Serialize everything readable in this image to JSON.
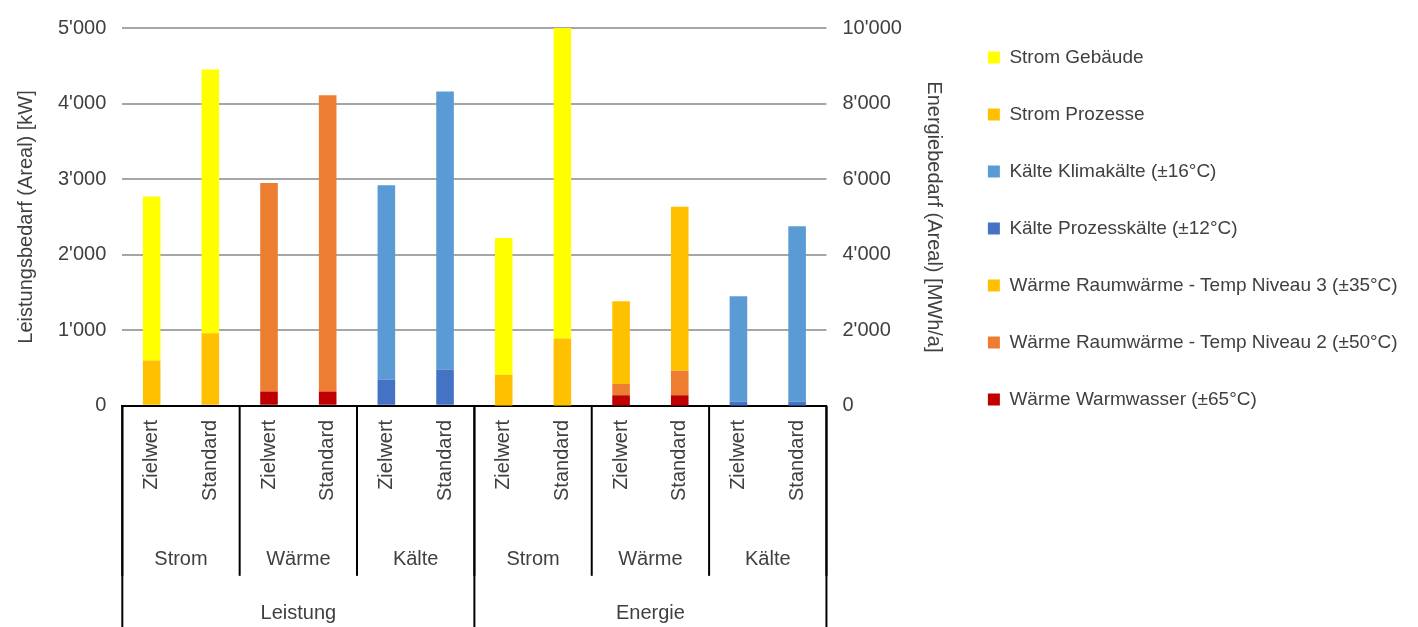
{
  "chart_data": {
    "type": "bar",
    "stacked": true,
    "ylabel": "Leistungsbedarf (Areal) [kW]",
    "y2label": "Energiebedarf (Areal) [MWh/a]",
    "categories": [
      "Zielwert",
      "Standard",
      "Zielwert",
      "Standard",
      "Zielwert",
      "Standard",
      "Zielwert",
      "Standard",
      "Zielwert",
      "Standard",
      "Zielwert",
      "Standard"
    ],
    "series": [
      {
        "name": "Wärme Warmwasser (±65°C)",
        "color": "#c00000",
        "values": [
          null,
          null,
          190,
          190,
          null,
          null,
          null,
          null,
          null,
          null,
          null,
          null
        ]
      },
      {
        "name": "Wärme Raumwärme - Temp Niveau 2 (±50°C)",
        "color": "#ed7d31",
        "values": [
          null,
          null,
          2760,
          3920,
          null,
          null,
          null,
          null,
          null,
          null,
          null,
          null
        ]
      },
      {
        "name": "Wärme Raumwärme - Temp Niveau 3 (±35°C)",
        "color": "#ffc000",
        "values": [
          null,
          null,
          null,
          null,
          null,
          null,
          null,
          null,
          null,
          null,
          null,
          null
        ]
      },
      {
        "name": "Kälte Prozesskälte (±12°C)",
        "color": "#4472c4",
        "values": [
          null,
          null,
          null,
          null,
          350,
          480,
          null,
          null,
          null,
          null,
          null,
          null
        ]
      },
      {
        "name": "Kälte Klimakälte (±16°C)",
        "color": "#5b9bd5",
        "values": [
          null,
          null,
          null,
          null,
          2570,
          3680,
          null,
          null,
          null,
          null,
          null,
          null
        ]
      },
      {
        "name": "Strom Prozesse",
        "color": "#ffc000",
        "values": [
          600,
          960,
          null,
          null,
          null,
          null,
          null,
          null,
          null,
          null,
          null,
          null
        ]
      },
      {
        "name": "Strom Gebäude",
        "color": "#ffff00",
        "values": [
          2170,
          3490,
          null,
          null,
          null,
          null,
          null,
          null,
          null,
          null,
          null,
          null
        ]
      },
      {
        "color": "#c00000",
        "axis": "y2",
        "values": [
          null,
          null,
          null,
          null,
          null,
          null,
          null,
          null,
          280,
          280,
          null,
          null
        ]
      },
      {
        "color": "#ed7d31",
        "axis": "y2",
        "values": [
          null,
          null,
          null,
          null,
          null,
          null,
          null,
          null,
          300,
          650,
          null,
          null
        ]
      },
      {
        "color": "#ffc000",
        "axis": "y2",
        "values": [
          null,
          null,
          null,
          null,
          null,
          null,
          null,
          null,
          2190,
          4340,
          null,
          null
        ]
      },
      {
        "color": "#4472c4",
        "axis": "y2",
        "values": [
          null,
          null,
          null,
          null,
          null,
          null,
          null,
          null,
          null,
          null,
          110,
          110
        ]
      },
      {
        "color": "#5b9bd5",
        "axis": "y2",
        "values": [
          null,
          null,
          null,
          null,
          null,
          null,
          null,
          null,
          null,
          null,
          2790,
          4640
        ]
      },
      {
        "color": "#ffc000",
        "axis": "y2",
        "values": [
          null,
          null,
          null,
          null,
          null,
          null,
          820,
          1780,
          null,
          null,
          null,
          null
        ]
      },
      {
        "color": "#ffff00",
        "axis": "y2",
        "values": [
          null,
          null,
          null,
          null,
          null,
          null,
          3620,
          8220,
          null,
          null,
          null,
          null
        ]
      }
    ],
    "ylim": [
      0,
      5000
    ],
    "yticks": [
      {
        "value": 0,
        "label": "0"
      },
      {
        "value": 1000,
        "label": "1'000"
      },
      {
        "value": 2000,
        "label": "2'000"
      },
      {
        "value": 3000,
        "label": "3'000"
      },
      {
        "value": 4000,
        "label": "4'000"
      },
      {
        "value": 5000,
        "label": "5'000"
      }
    ],
    "y2lim": [
      0,
      10000
    ],
    "y2ticks": [
      {
        "value": 0,
        "label": "0"
      },
      {
        "value": 2000,
        "label": "2'000"
      },
      {
        "value": 4000,
        "label": "4'000"
      },
      {
        "value": 6000,
        "label": "6'000"
      },
      {
        "value": 8000,
        "label": "8'000"
      },
      {
        "value": 10000,
        "label": "10'000"
      }
    ],
    "annotations": [
      "Strom",
      "Wärme",
      "Kälte",
      "Strom",
      "Wärme",
      "Kälte",
      "Leistung",
      "Energie"
    ],
    "grid": "y",
    "legend": "right"
  }
}
